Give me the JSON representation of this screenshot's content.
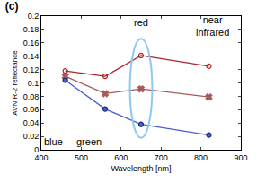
{
  "chart_data": {
    "type": "line",
    "title": "(c)",
    "x_label": "Wavelength [nm]",
    "y_label": "AVNIR-2 reflectance",
    "x": [
      460,
      560,
      650,
      820
    ],
    "series": [
      {
        "color": "#b0202a",
        "marker": "circle-open",
        "values": [
          0.118,
          0.11,
          0.141,
          0.125
        ]
      },
      {
        "color": "#a85a5a",
        "marker": "x",
        "values": [
          0.11,
          0.084,
          0.091,
          0.079
        ]
      },
      {
        "color": "#4a5fd0",
        "marker": "circle",
        "values": [
          0.104,
          0.061,
          0.038,
          0.022
        ]
      }
    ],
    "annotations": [
      "red",
      "near infrared",
      "blue",
      "green"
    ],
    "xlim": [
      400,
      900
    ],
    "xticks": [
      400,
      500,
      600,
      700,
      800,
      900
    ],
    "ylim": [
      0,
      0.2
    ],
    "yticks": [
      0,
      0.02,
      0.04,
      0.06,
      0.08,
      0.1,
      0.12,
      0.14,
      0.16,
      0.18,
      0.2
    ],
    "grid": false
  }
}
